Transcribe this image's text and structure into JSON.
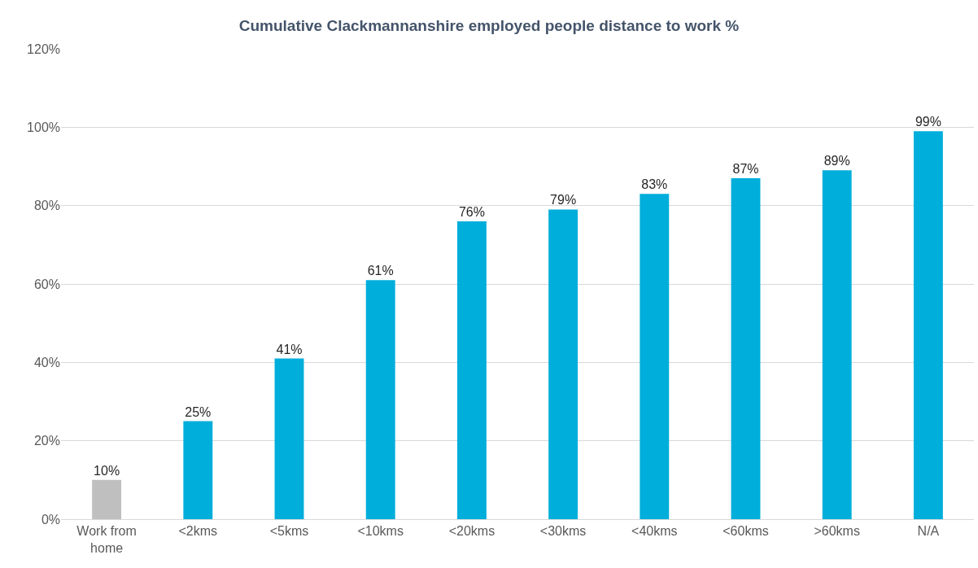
{
  "chart_data": {
    "type": "bar",
    "title": "Cumulative Clackmannanshire employed people distance to work %",
    "categories": [
      "Work from home",
      "<2kms",
      "<5kms",
      "<10kms",
      "<20kms",
      "<30kms",
      "<40kms",
      "<60kms",
      ">60kms",
      "N/A"
    ],
    "values": [
      10,
      25,
      41,
      61,
      76,
      79,
      83,
      87,
      89,
      99
    ],
    "colors": [
      "#bfbfbf",
      "#00aedb",
      "#00aedb",
      "#00aedb",
      "#00aedb",
      "#00aedb",
      "#00aedb",
      "#00aedb",
      "#00aedb",
      "#00aedb"
    ],
    "value_labels": [
      "10%",
      "25%",
      "41%",
      "61%",
      "76%",
      "79%",
      "83%",
      "87%",
      "89%",
      "99%"
    ],
    "ylim": [
      0,
      120
    ],
    "yticks": [
      {
        "value": 0,
        "label": "0%"
      },
      {
        "value": 20,
        "label": "20%"
      },
      {
        "value": 40,
        "label": "40%"
      },
      {
        "value": 60,
        "label": "60%"
      },
      {
        "value": 80,
        "label": "80%"
      },
      {
        "value": 100,
        "label": "100%"
      },
      {
        "value": 120,
        "label": "120%"
      }
    ],
    "grid": "y"
  }
}
